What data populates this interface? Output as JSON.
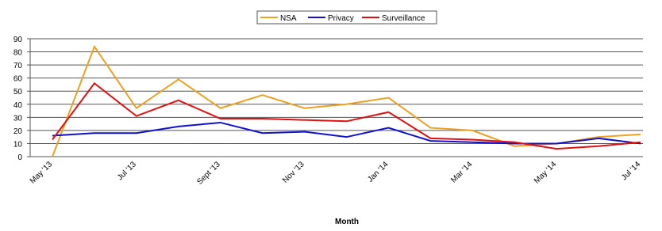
{
  "chart_data": {
    "type": "line",
    "x_label": "Month",
    "categories": [
      "May '13",
      null,
      "Jul '13",
      null,
      "Sept '13",
      null,
      "Nov '13",
      null,
      "Jan '14",
      null,
      "Mar '14",
      null,
      "May '14",
      null,
      "Jul '14"
    ],
    "series": [
      {
        "name": "NSA",
        "color": "#f0a020",
        "values": [
          0,
          84,
          37,
          59,
          37,
          47,
          37,
          40,
          45,
          22,
          20,
          8,
          10,
          15,
          17
        ]
      },
      {
        "name": "Privacy",
        "color": "#1010d0",
        "values": [
          16,
          18,
          18,
          23,
          26,
          18,
          19,
          15,
          22,
          12,
          11,
          10,
          10,
          14,
          10
        ]
      },
      {
        "name": "Surveillance",
        "color": "#e01010",
        "values": [
          13,
          56,
          31,
          43,
          29,
          29,
          28,
          27,
          34,
          14,
          13,
          11,
          6,
          8,
          11
        ]
      }
    ],
    "ylim": [
      0,
      90
    ],
    "yticks": [
      0,
      10,
      20,
      30,
      40,
      50,
      60,
      70,
      80,
      90
    ],
    "grid": true,
    "legend": "top"
  }
}
